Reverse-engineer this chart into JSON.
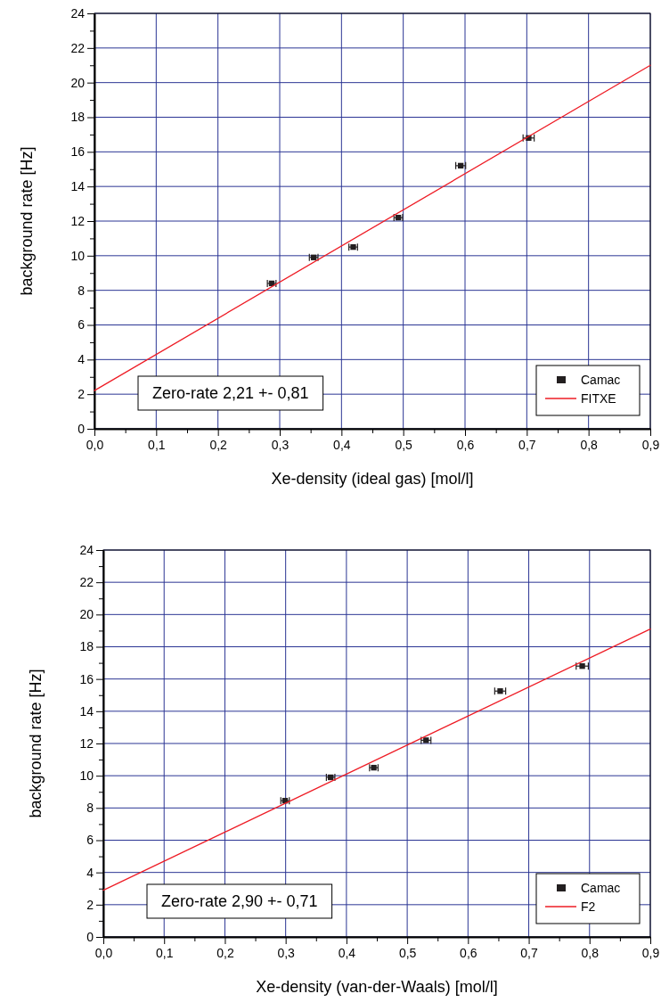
{
  "chart_data": [
    {
      "type": "scatter",
      "xlabel": "Xe-density  (ideal gas)  [mol/l]",
      "ylabel": "background rate  [Hz]",
      "xlim": [
        0,
        0.9
      ],
      "ylim": [
        0,
        24
      ],
      "xticks": [
        {
          "value": 0,
          "label": "0,0"
        },
        {
          "value": 0.05,
          "label": null
        },
        {
          "value": 0.1,
          "label": "0,1"
        },
        {
          "value": 0.15,
          "label": null
        },
        {
          "value": 0.2,
          "label": "0,2"
        },
        {
          "value": 0.25,
          "label": null
        },
        {
          "value": 0.3,
          "label": "0,3"
        },
        {
          "value": 0.35,
          "label": null
        },
        {
          "value": 0.4,
          "label": "0,4"
        },
        {
          "value": 0.45,
          "label": null
        },
        {
          "value": 0.5,
          "label": "0,5"
        },
        {
          "value": 0.55,
          "label": null
        },
        {
          "value": 0.6,
          "label": "0,6"
        },
        {
          "value": 0.65,
          "label": null
        },
        {
          "value": 0.7,
          "label": "0,7"
        },
        {
          "value": 0.75,
          "label": null
        },
        {
          "value": 0.8,
          "label": "0,8"
        },
        {
          "value": 0.85,
          "label": null
        },
        {
          "value": 0.9,
          "label": "0,9"
        }
      ],
      "yticks": [
        0,
        {
          "value": 1,
          "label": null
        },
        2,
        {
          "value": 3,
          "label": null
        },
        4,
        {
          "value": 5,
          "label": null
        },
        6,
        {
          "value": 7,
          "label": null
        },
        8,
        {
          "value": 9,
          "label": null
        },
        10,
        {
          "value": 11,
          "label": null
        },
        12,
        {
          "value": 13,
          "label": null
        },
        14,
        {
          "value": 15,
          "label": null
        },
        16,
        {
          "value": 17,
          "label": null
        },
        18,
        {
          "value": 19,
          "label": null
        },
        20,
        {
          "value": 21,
          "label": null
        },
        22,
        {
          "value": 23,
          "label": null
        },
        24
      ],
      "grid": true,
      "legend": "bottom right",
      "annotations": [
        "Zero-rate 2,21 +- 0,81"
      ],
      "series": [
        {
          "name": "Camac",
          "marker": "square",
          "color": "#231f20",
          "x": [
            0.287,
            0.355,
            0.419,
            0.492,
            0.593,
            0.703
          ],
          "values": [
            8.4,
            9.9,
            10.5,
            12.2,
            15.2,
            16.8
          ],
          "xerrors": [
            0.007,
            0.007,
            0.007,
            0.007,
            0.008,
            0.009
          ]
        },
        {
          "name": "FITXE",
          "type": "line",
          "color": "#ee1c25",
          "x": [
            0,
            0.9
          ],
          "values": [
            2.21,
            21.0
          ]
        }
      ]
    },
    {
      "type": "scatter",
      "xlabel": "Xe-density  (van-der-Waals)  [mol/l]",
      "ylabel": "background rate  [Hz]",
      "xlim": [
        0,
        0.9
      ],
      "ylim": [
        0,
        24
      ],
      "xticks": [
        {
          "value": 0,
          "label": "0,0"
        },
        {
          "value": 0.05,
          "label": null
        },
        {
          "value": 0.1,
          "label": "0,1"
        },
        {
          "value": 0.15,
          "label": null
        },
        {
          "value": 0.2,
          "label": "0,2"
        },
        {
          "value": 0.25,
          "label": null
        },
        {
          "value": 0.3,
          "label": "0,3"
        },
        {
          "value": 0.35,
          "label": null
        },
        {
          "value": 0.4,
          "label": "0,4"
        },
        {
          "value": 0.45,
          "label": null
        },
        {
          "value": 0.5,
          "label": "0,5"
        },
        {
          "value": 0.55,
          "label": null
        },
        {
          "value": 0.6,
          "label": "0,6"
        },
        {
          "value": 0.65,
          "label": null
        },
        {
          "value": 0.7,
          "label": "0,7"
        },
        {
          "value": 0.75,
          "label": null
        },
        {
          "value": 0.8,
          "label": "0,8"
        },
        {
          "value": 0.85,
          "label": null
        },
        {
          "value": 0.9,
          "label": "0,9"
        }
      ],
      "yticks": [
        0,
        {
          "value": 1,
          "label": null
        },
        2,
        {
          "value": 3,
          "label": null
        },
        4,
        {
          "value": 5,
          "label": null
        },
        6,
        {
          "value": 7,
          "label": null
        },
        8,
        {
          "value": 9,
          "label": null
        },
        10,
        {
          "value": 11,
          "label": null
        },
        12,
        {
          "value": 13,
          "label": null
        },
        14,
        {
          "value": 15,
          "label": null
        },
        16,
        {
          "value": 17,
          "label": null
        },
        18,
        {
          "value": 19,
          "label": null
        },
        20,
        {
          "value": 21,
          "label": null
        },
        22,
        {
          "value": 23,
          "label": null
        },
        24
      ],
      "grid": true,
      "legend": "bottom right",
      "annotations": [
        "Zero-rate 2,90 +- 0,71"
      ],
      "series": [
        {
          "name": "Camac",
          "marker": "square",
          "color": "#231f20",
          "x": [
            0.299,
            0.374,
            0.445,
            0.531,
            0.653,
            0.788
          ],
          "values": [
            8.45,
            9.9,
            10.5,
            12.2,
            15.25,
            16.8
          ],
          "xerrors": [
            0.007,
            0.007,
            0.007,
            0.008,
            0.009,
            0.01
          ]
        },
        {
          "name": "F2",
          "type": "line",
          "color": "#ee1c25",
          "x": [
            0,
            0.9
          ],
          "values": [
            2.9,
            19.1
          ]
        }
      ]
    }
  ]
}
